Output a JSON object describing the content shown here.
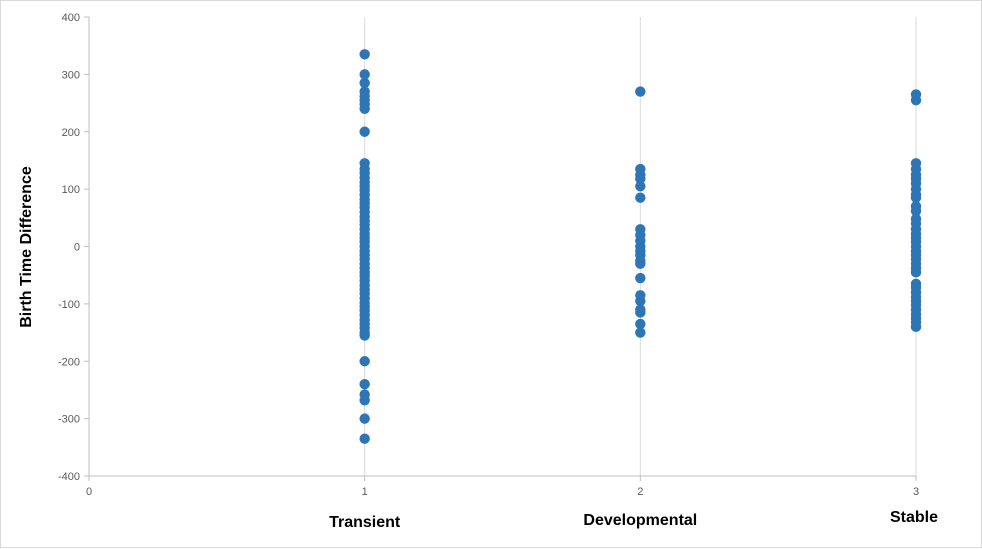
{
  "chart_data": {
    "type": "scatter",
    "title": "",
    "ylabel": "Birth Time Difference",
    "xlim": [
      0,
      3
    ],
    "ylim": [
      -400,
      400
    ],
    "x_ticks": [
      0,
      1,
      2,
      3
    ],
    "y_ticks": [
      -400,
      -300,
      -200,
      -100,
      0,
      100,
      200,
      300,
      400
    ],
    "category_labels": [
      {
        "x": 1,
        "label": "Transient"
      },
      {
        "x": 2,
        "label": "Developmental"
      },
      {
        "x": 3,
        "label": "Stable"
      }
    ],
    "grid": {
      "vertical": true,
      "horizontal": false
    },
    "marker_color": "#2e75b6",
    "series": [
      {
        "x": 1,
        "values": [
          335,
          300,
          285,
          270,
          262,
          255,
          248,
          240,
          200,
          145,
          135,
          128,
          120,
          112,
          105,
          98,
          90,
          82,
          75,
          68,
          60,
          52,
          45,
          38,
          30,
          22,
          15,
          8,
          0,
          -8,
          -15,
          -22,
          -30,
          -38,
          -45,
          -52,
          -60,
          -68,
          -75,
          -82,
          -90,
          -98,
          -105,
          -112,
          -120,
          -128,
          -135,
          -142,
          -150,
          -155,
          -200,
          -240,
          -258,
          -268,
          -300,
          -335
        ]
      },
      {
        "x": 2,
        "values": [
          270,
          135,
          125,
          118,
          105,
          85,
          30,
          20,
          10,
          0,
          -8,
          -15,
          -25,
          -30,
          -55,
          -85,
          -95,
          -110,
          -115,
          -135,
          -150
        ]
      },
      {
        "x": 3,
        "values": [
          265,
          255,
          145,
          135,
          125,
          118,
          110,
          100,
          90,
          85,
          70,
          62,
          48,
          40,
          30,
          22,
          15,
          8,
          0,
          -8,
          -15,
          -22,
          -30,
          -38,
          -45,
          -65,
          -72,
          -80,
          -88,
          -95,
          -102,
          -110,
          -118,
          -125,
          -132,
          -140
        ]
      }
    ]
  }
}
